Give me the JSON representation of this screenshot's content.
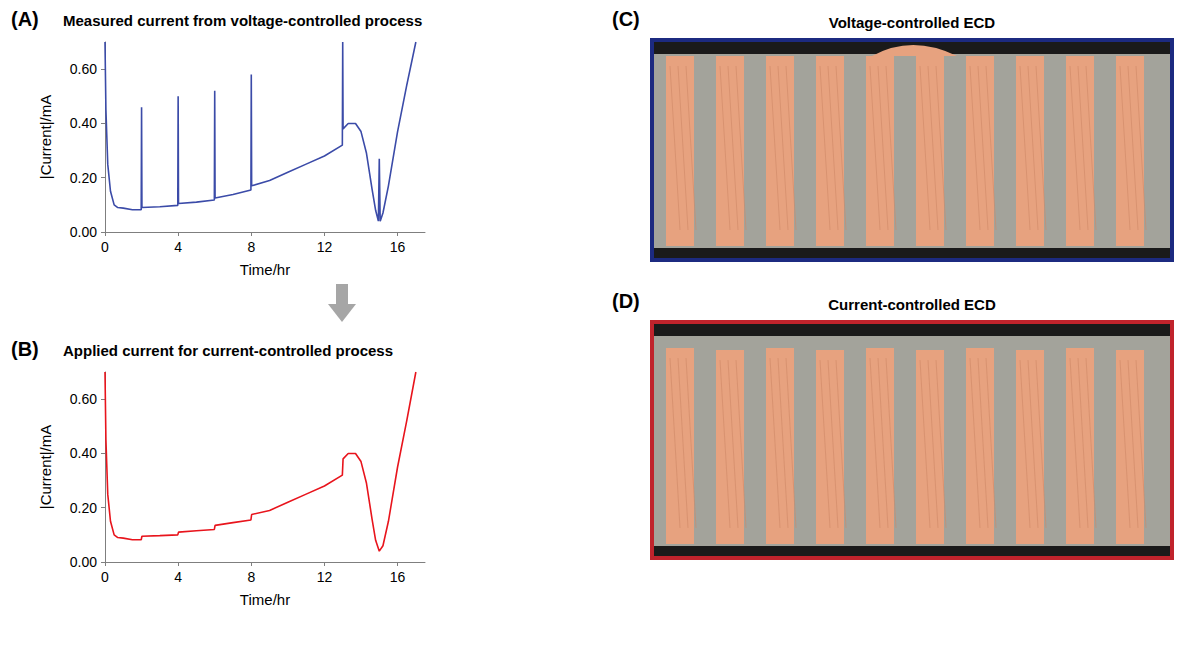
{
  "chart_data": [
    {
      "type": "line",
      "label": "(A)",
      "title": "Measured current from voltage-controlled process",
      "x_label": "Time/hr",
      "y_label": "|Current|/mA",
      "color": "#3b4ba8",
      "x": [
        0,
        0.05,
        0.15,
        0.3,
        0.5,
        0.7,
        1,
        1.5,
        1.98,
        2,
        2.02,
        3,
        3.98,
        4,
        4.02,
        5,
        5.98,
        6,
        6.02,
        7,
        7.98,
        8,
        8.02,
        9,
        10,
        11,
        12,
        12.98,
        13,
        13.02,
        13.3,
        13.7,
        14,
        14.3,
        14.6,
        14.8,
        14.95,
        15,
        15.05,
        15.2,
        15.5,
        16,
        16.5,
        17
      ],
      "values": [
        0.7,
        0.45,
        0.25,
        0.15,
        0.1,
        0.09,
        0.088,
        0.082,
        0.082,
        0.46,
        0.09,
        0.093,
        0.098,
        0.5,
        0.105,
        0.11,
        0.118,
        0.52,
        0.125,
        0.138,
        0.155,
        0.58,
        0.17,
        0.19,
        0.22,
        0.25,
        0.28,
        0.32,
        0.7,
        0.38,
        0.4,
        0.4,
        0.37,
        0.29,
        0.16,
        0.08,
        0.04,
        0.27,
        0.04,
        0.07,
        0.17,
        0.37,
        0.54,
        0.7
      ],
      "xlim": [
        0,
        17.5
      ],
      "xticks": [
        0,
        4,
        8,
        12,
        16
      ],
      "ylim": [
        0,
        0.7
      ],
      "yticks": [
        {
          "value": 0,
          "label": "0.00"
        },
        {
          "value": 0.2,
          "label": "0.20"
        },
        {
          "value": 0.4,
          "label": "0.40"
        },
        {
          "value": 0.6,
          "label": "0.60"
        }
      ],
      "grid": false
    },
    {
      "type": "line",
      "label": "(B)",
      "title": "Applied current for current-controlled process",
      "x_label": "Time/hr",
      "y_label": "|Current|/mA",
      "color": "#e8141c",
      "x": [
        0,
        0.05,
        0.15,
        0.3,
        0.5,
        0.7,
        1,
        1.5,
        1.98,
        2.02,
        3,
        3.98,
        4.02,
        5,
        5.98,
        6.02,
        7,
        7.98,
        8.02,
        9,
        10,
        11,
        12,
        12.98,
        13.02,
        13.3,
        13.7,
        14,
        14.3,
        14.6,
        14.8,
        15,
        15.2,
        15.5,
        16,
        16.5,
        17
      ],
      "values": [
        0.7,
        0.45,
        0.25,
        0.15,
        0.1,
        0.09,
        0.088,
        0.082,
        0.082,
        0.095,
        0.097,
        0.1,
        0.11,
        0.115,
        0.12,
        0.135,
        0.145,
        0.155,
        0.175,
        0.19,
        0.22,
        0.25,
        0.28,
        0.32,
        0.38,
        0.4,
        0.4,
        0.37,
        0.29,
        0.16,
        0.08,
        0.04,
        0.06,
        0.15,
        0.35,
        0.52,
        0.7
      ],
      "xlim": [
        0,
        17.5
      ],
      "xticks": [
        0,
        4,
        8,
        12,
        16
      ],
      "ylim": [
        0,
        0.7
      ],
      "yticks": [
        {
          "value": 0,
          "label": "0.00"
        },
        {
          "value": 0.2,
          "label": "0.20"
        },
        {
          "value": 0.4,
          "label": "0.40"
        },
        {
          "value": 0.6,
          "label": "0.60"
        }
      ],
      "grid": false
    }
  ],
  "images": [
    {
      "label": "(C)",
      "title": "Voltage-controlled ECD",
      "color": "#1c2a80"
    },
    {
      "label": "(D)",
      "title": "Current-controlled ECD",
      "color": "#c0232c"
    }
  ]
}
